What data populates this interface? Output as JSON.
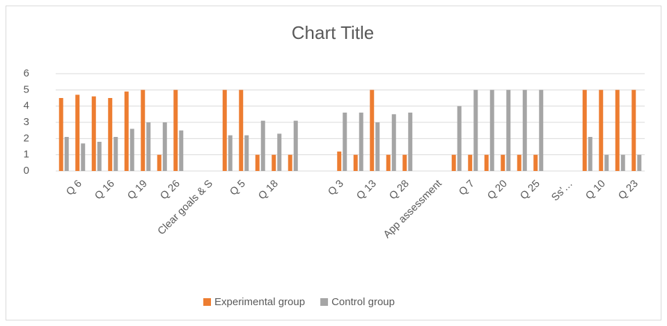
{
  "chart_data": {
    "type": "bar",
    "title": "Chart Title",
    "categories": [
      null,
      "Q 6",
      null,
      "Q 16",
      null,
      "Q 19",
      null,
      "Q 26",
      null,
      "Clear goals & S",
      null,
      "Q 5",
      null,
      "Q 18",
      null,
      null,
      null,
      "Q 3",
      null,
      "Q 13",
      null,
      "Q 28",
      null,
      "App assessment",
      null,
      "Q 7",
      null,
      "Q 20",
      null,
      "Q 25",
      null,
      "Ss'…",
      null,
      "Q 10",
      null,
      "Q 23"
    ],
    "series": [
      {
        "name": "Experimental group",
        "color": "#ed7d31",
        "values": [
          4.5,
          4.7,
          4.6,
          4.5,
          4.9,
          5,
          1,
          5,
          null,
          null,
          5,
          5,
          1,
          1,
          1,
          null,
          null,
          1.2,
          1,
          5,
          1,
          1,
          null,
          null,
          1,
          1,
          1,
          1,
          1,
          1,
          null,
          null,
          5,
          5,
          5,
          5
        ]
      },
      {
        "name": "Control group",
        "color": "#a5a5a5",
        "values": [
          2.1,
          1.7,
          1.8,
          2.1,
          2.6,
          3,
          3,
          2.5,
          null,
          null,
          2.2,
          2.2,
          3.1,
          2.3,
          3.1,
          null,
          null,
          3.6,
          3.6,
          3,
          3.5,
          3.6,
          null,
          null,
          4,
          5,
          5,
          5,
          5,
          5,
          null,
          null,
          2.1,
          1,
          1,
          1
        ]
      }
    ],
    "ylim": [
      0,
      6
    ],
    "yticks": [
      0,
      1,
      2,
      3,
      4,
      5,
      6
    ],
    "grid": true,
    "legend": "bottom"
  }
}
